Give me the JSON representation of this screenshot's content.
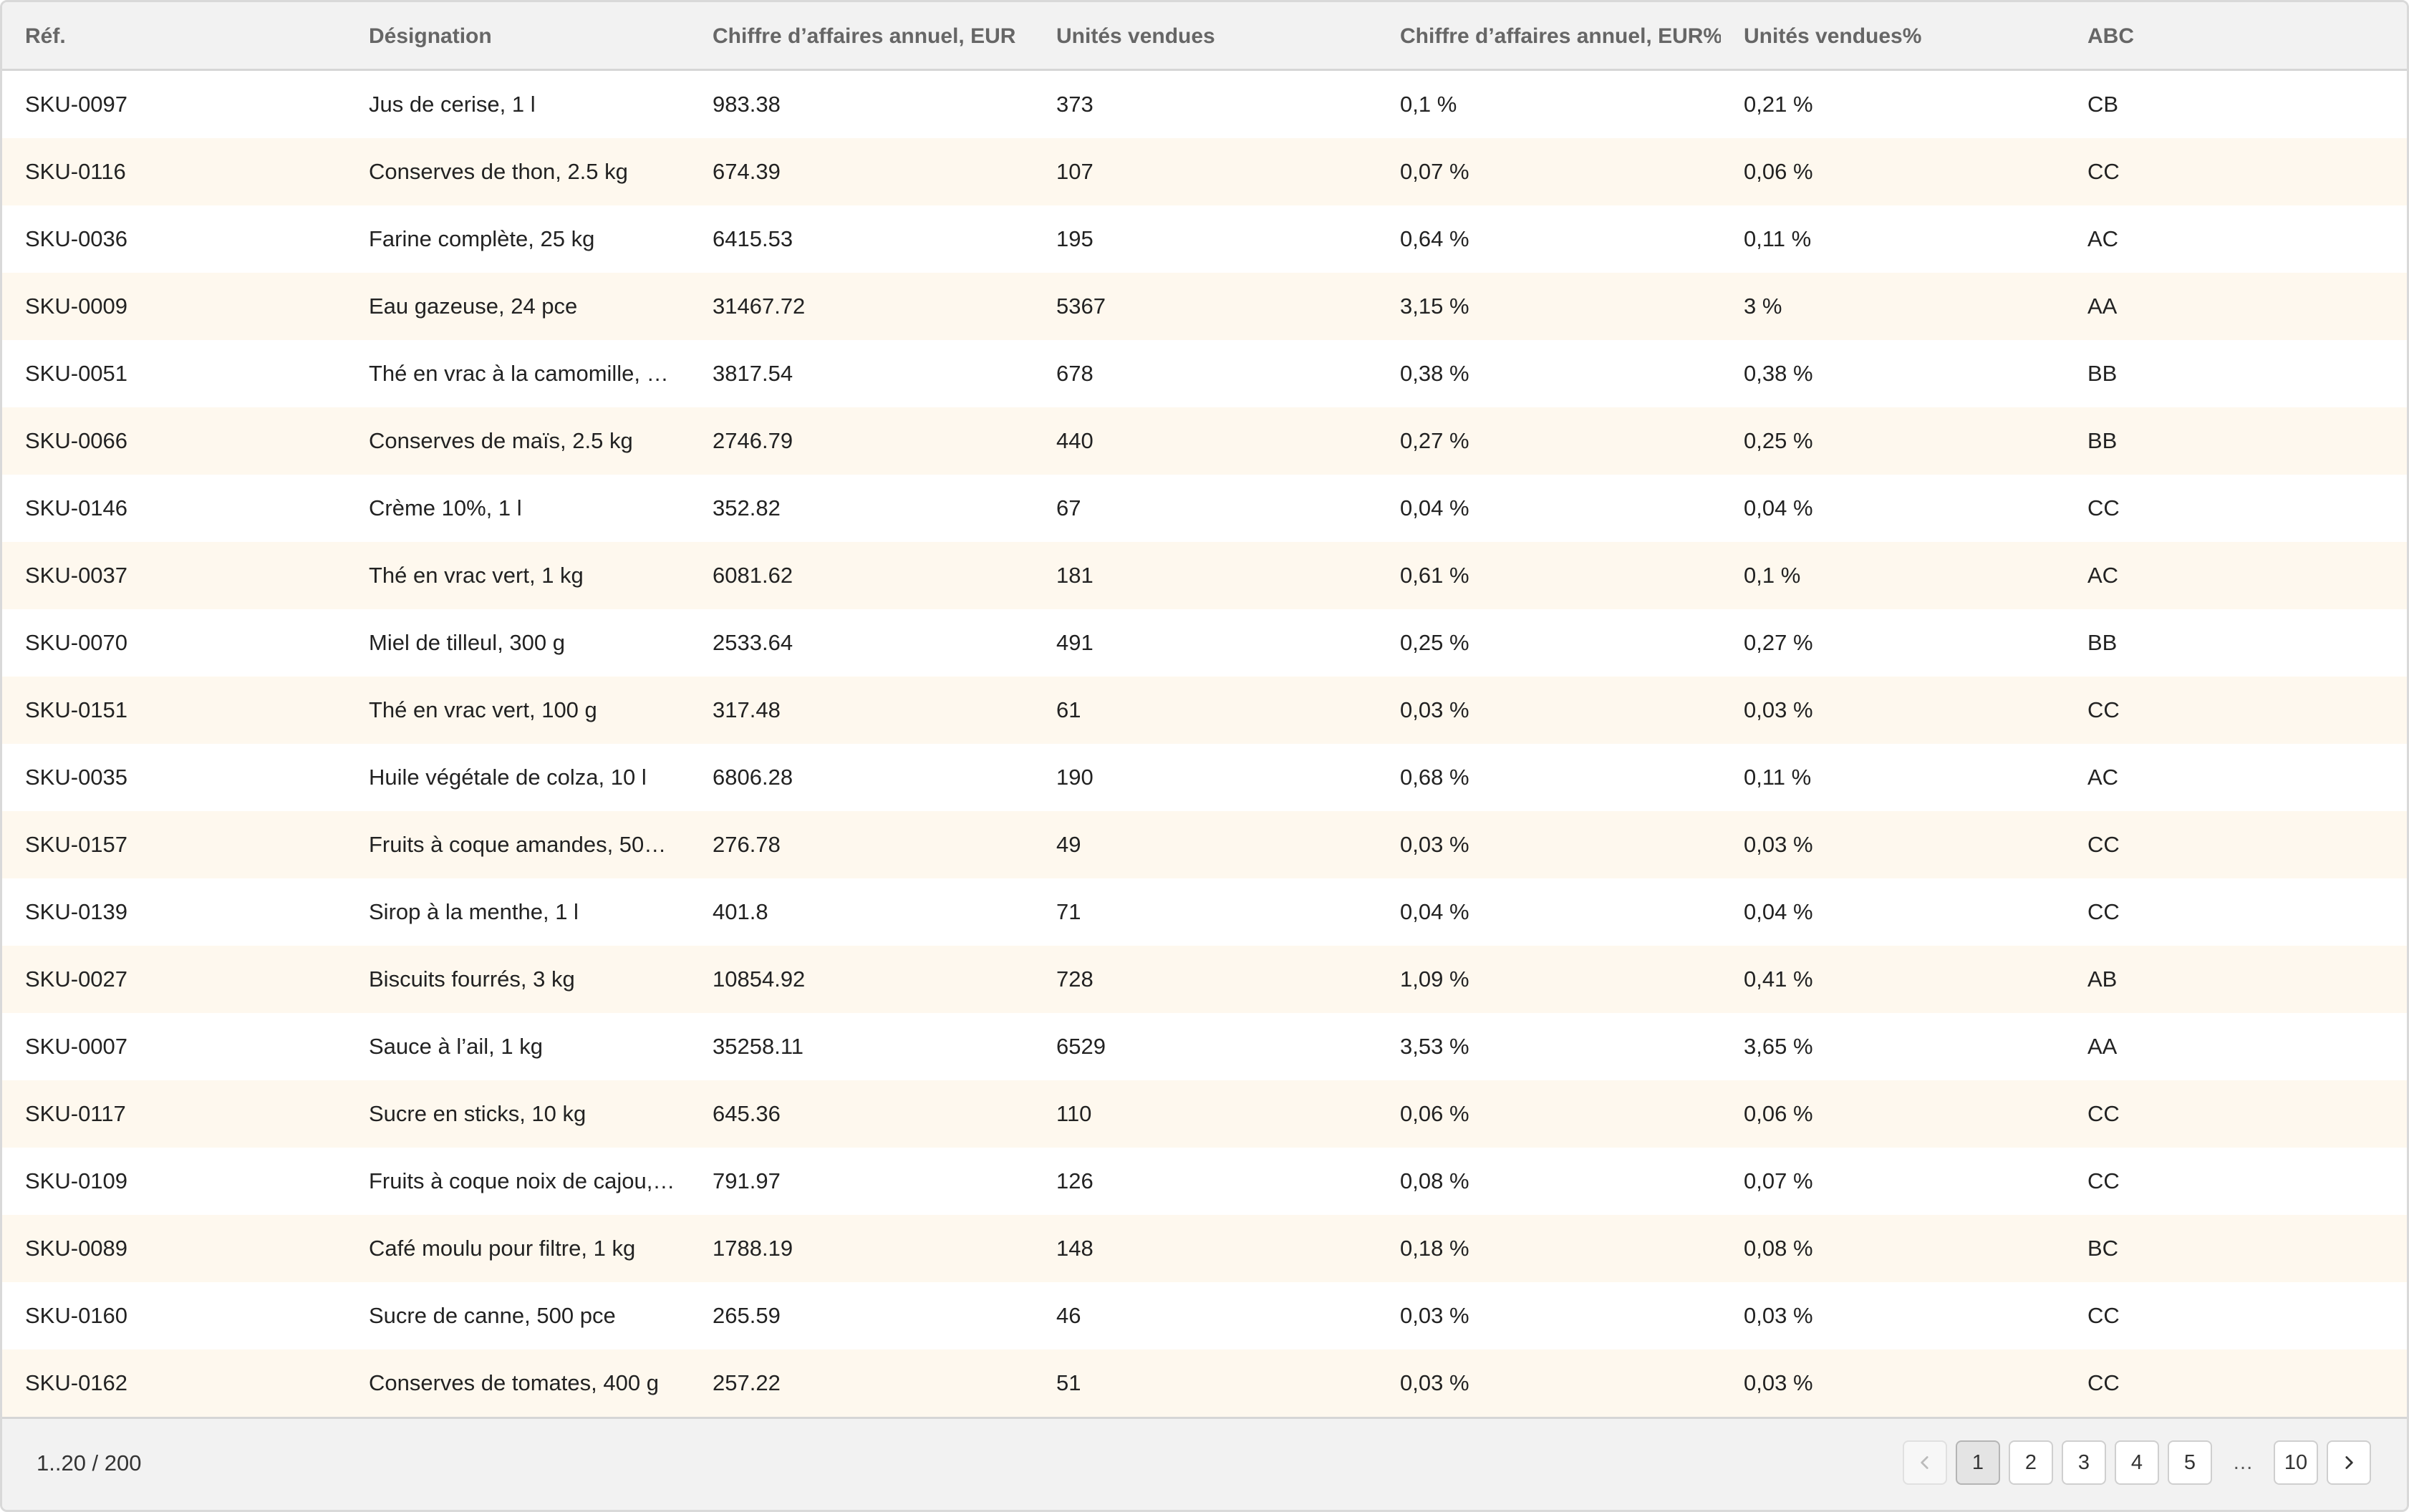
{
  "table": {
    "columns": [
      "Réf.",
      "Désignation",
      "Chiffre d’affaires annuel, EUR",
      "Unités vendues",
      "Chiffre d’affaires annuel, EUR%",
      "Unités vendues%",
      "ABC"
    ],
    "rows": [
      [
        "SKU-0097",
        "Jus de cerise, 1 l",
        "983.38",
        "373",
        "0,1 %",
        "0,21 %",
        "CB"
      ],
      [
        "SKU-0116",
        "Conserves de thon, 2.5 kg",
        "674.39",
        "107",
        "0,07 %",
        "0,06 %",
        "CC"
      ],
      [
        "SKU-0036",
        "Farine complète, 25 kg",
        "6415.53",
        "195",
        "0,64 %",
        "0,11 %",
        "AC"
      ],
      [
        "SKU-0009",
        "Eau gazeuse, 24 pce",
        "31467.72",
        "5367",
        "3,15 %",
        "3 %",
        "AA"
      ],
      [
        "SKU-0051",
        "Thé en vrac à la camomille, …",
        "3817.54",
        "678",
        "0,38 %",
        "0,38 %",
        "BB"
      ],
      [
        "SKU-0066",
        "Conserves de maïs, 2.5 kg",
        "2746.79",
        "440",
        "0,27 %",
        "0,25 %",
        "BB"
      ],
      [
        "SKU-0146",
        "Crème 10%, 1 l",
        "352.82",
        "67",
        "0,04 %",
        "0,04 %",
        "CC"
      ],
      [
        "SKU-0037",
        "Thé en vrac vert, 1 kg",
        "6081.62",
        "181",
        "0,61 %",
        "0,1 %",
        "AC"
      ],
      [
        "SKU-0070",
        "Miel de tilleul, 300 g",
        "2533.64",
        "491",
        "0,25 %",
        "0,27 %",
        "BB"
      ],
      [
        "SKU-0151",
        "Thé en vrac vert, 100 g",
        "317.48",
        "61",
        "0,03 %",
        "0,03 %",
        "CC"
      ],
      [
        "SKU-0035",
        "Huile végétale de colza, 10 l",
        "6806.28",
        "190",
        "0,68 %",
        "0,11 %",
        "AC"
      ],
      [
        "SKU-0157",
        "Fruits à coque amandes, 50…",
        "276.78",
        "49",
        "0,03 %",
        "0,03 %",
        "CC"
      ],
      [
        "SKU-0139",
        "Sirop à la menthe, 1 l",
        "401.8",
        "71",
        "0,04 %",
        "0,04 %",
        "CC"
      ],
      [
        "SKU-0027",
        "Biscuits fourrés, 3 kg",
        "10854.92",
        "728",
        "1,09 %",
        "0,41 %",
        "AB"
      ],
      [
        "SKU-0007",
        "Sauce à l’ail, 1 kg",
        "35258.11",
        "6529",
        "3,53 %",
        "3,65 %",
        "AA"
      ],
      [
        "SKU-0117",
        "Sucre en sticks, 10 kg",
        "645.36",
        "110",
        "0,06 %",
        "0,06 %",
        "CC"
      ],
      [
        "SKU-0109",
        "Fruits à coque noix de cajou,…",
        "791.97",
        "126",
        "0,08 %",
        "0,07 %",
        "CC"
      ],
      [
        "SKU-0089",
        "Café moulu pour filtre, 1 kg",
        "1788.19",
        "148",
        "0,18 %",
        "0,08 %",
        "BC"
      ],
      [
        "SKU-0160",
        "Sucre de canne, 500 pce",
        "265.59",
        "46",
        "0,03 %",
        "0,03 %",
        "CC"
      ],
      [
        "SKU-0162",
        "Conserves de tomates, 400 g",
        "257.22",
        "51",
        "0,03 %",
        "0,03 %",
        "CC"
      ]
    ]
  },
  "footer": {
    "range_text": "1..20 / 200",
    "pages": [
      "1",
      "2",
      "3",
      "4",
      "5"
    ],
    "ellipsis": "…",
    "last_page": "10",
    "current_page": "1",
    "prev_icon": "chevron-left-icon",
    "next_icon": "chevron-right-icon"
  },
  "colors": {
    "header_bg": "#f2f2f2",
    "row_alt_bg": "#fef8ee",
    "header_text": "#666666"
  }
}
